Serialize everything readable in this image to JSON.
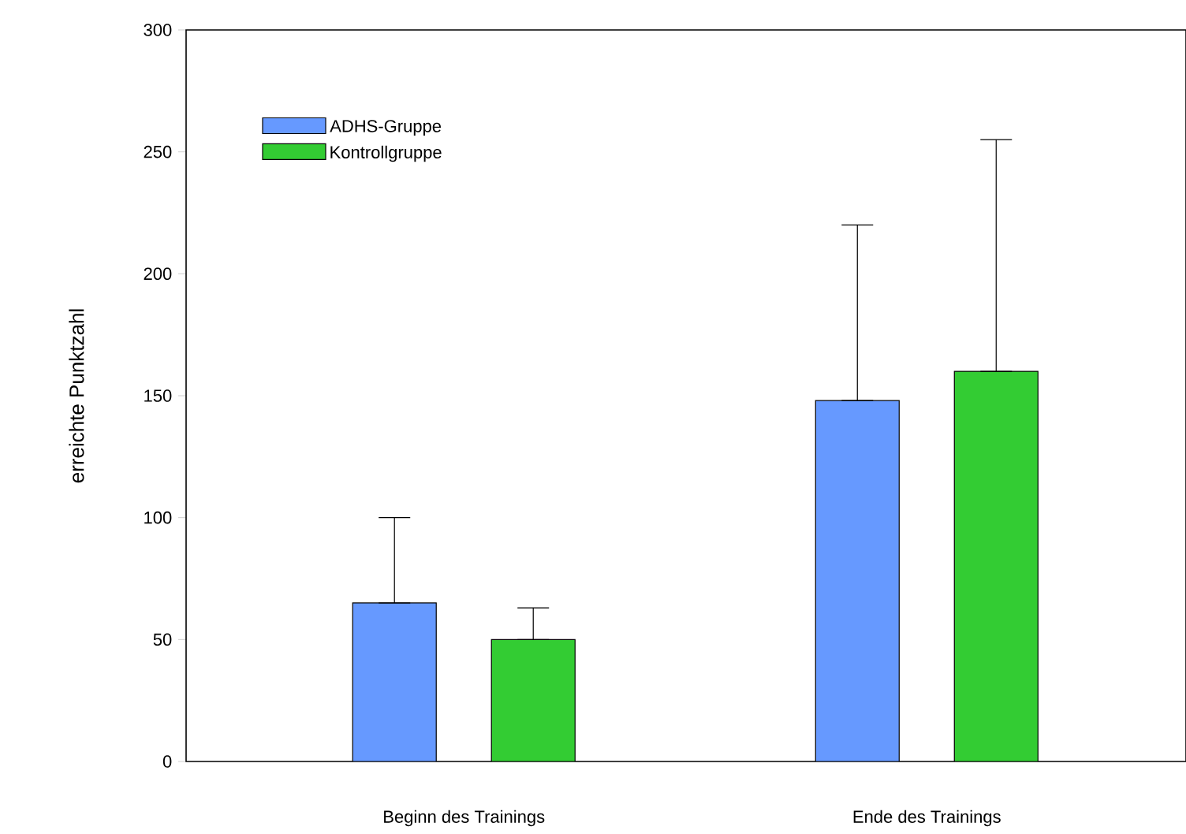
{
  "chart_data": {
    "type": "bar",
    "ylabel": "erreichte Punktzahl",
    "categories": [
      "Beginn des Trainings",
      "Ende des Trainings"
    ],
    "series": [
      {
        "name": "ADHS-Gruppe",
        "color": "#6699ff",
        "values": [
          65,
          148
        ],
        "errors": [
          [
            65,
            100
          ],
          [
            148,
            220
          ]
        ]
      },
      {
        "name": "Kontrollgruppe",
        "color": "#33cc33",
        "values": [
          50,
          160
        ],
        "errors": [
          [
            50,
            63
          ],
          [
            160,
            255
          ]
        ]
      }
    ],
    "ylim": [
      0,
      300
    ],
    "yticks": [
      0,
      50,
      100,
      150,
      200,
      250,
      300
    ],
    "grid": false,
    "legend": "top left"
  }
}
